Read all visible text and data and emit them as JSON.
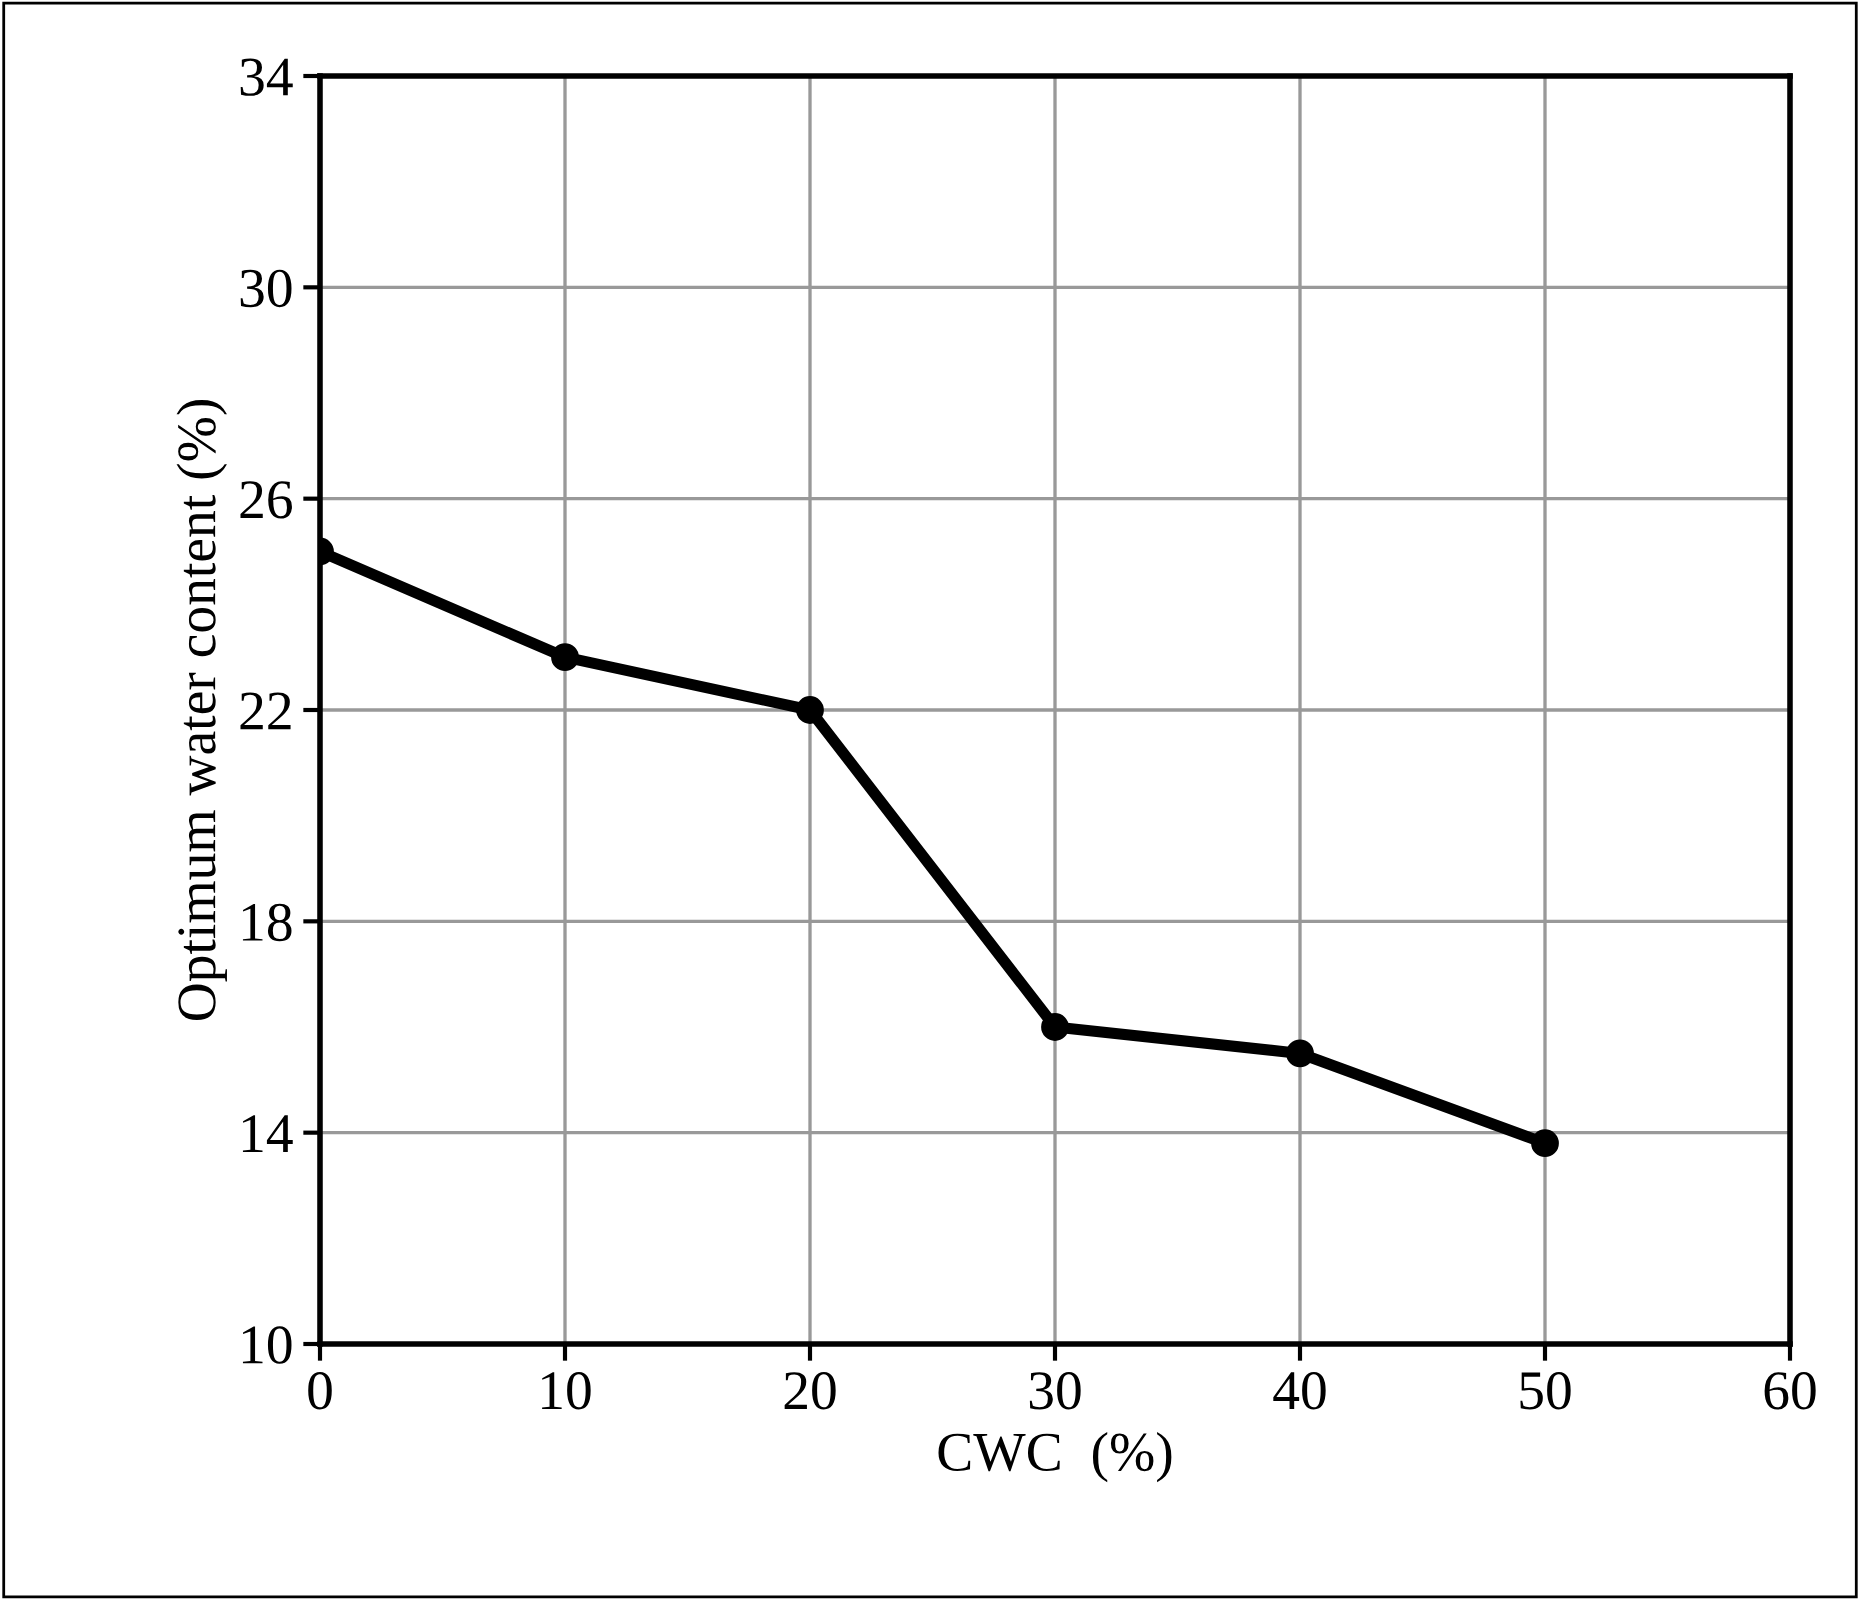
{
  "chart_data": {
    "type": "line",
    "xlabel": "CWC  (%)",
    "ylabel": "Optimum water content (%)",
    "x": [
      0,
      10,
      20,
      30,
      40,
      50
    ],
    "series": [
      {
        "color": "#000000",
        "values": [
          25,
          23,
          22,
          16,
          15.5,
          13.8
        ]
      }
    ],
    "xlim": [
      0,
      60
    ],
    "xticks": [
      0,
      10,
      20,
      30,
      40,
      50,
      60
    ],
    "ylim": [
      10,
      34
    ],
    "yticks": [
      10,
      14,
      18,
      22,
      26,
      30,
      34
    ],
    "grid": true,
    "marker": "circle",
    "line_style": "solid"
  }
}
